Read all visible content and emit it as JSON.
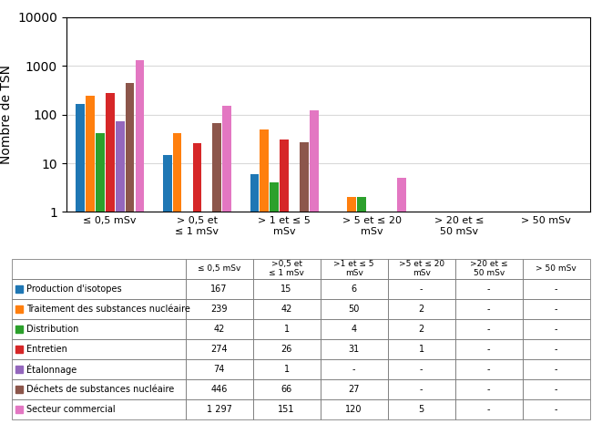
{
  "chart_data": {
    "type": "bar",
    "categories": [
      "≤ 0,5 mSv",
      "> 0,5 et\n≤ 1 mSv",
      "> 1 et ≤ 5\nmSv",
      "> 5 et ≤ 20\nmSv",
      "> 20 et ≤\n50 mSv",
      "> 50 mSv"
    ],
    "ylabel": "Nombre de TSN",
    "log": "y",
    "ylim": [
      1,
      10000
    ],
    "yticks": [
      1,
      10,
      100,
      1000,
      10000
    ],
    "grid": true,
    "series": [
      {
        "name": "Production d'isotopes",
        "values": [
          167,
          15,
          6,
          null,
          null,
          null
        ],
        "value_labels": [
          "167",
          "15",
          "6",
          "-",
          "-",
          "-"
        ]
      },
      {
        "name": "Traitement des substances nucléaire",
        "values": [
          239,
          42,
          50,
          2,
          null,
          null
        ],
        "value_labels": [
          "239",
          "42",
          "50",
          "2",
          "-",
          "-"
        ]
      },
      {
        "name": "Distribution",
        "values": [
          42,
          1,
          4,
          2,
          null,
          null
        ],
        "value_labels": [
          "42",
          "1",
          "4",
          "2",
          "-",
          "-"
        ]
      },
      {
        "name": "Entretien",
        "values": [
          274,
          26,
          31,
          1,
          null,
          null
        ],
        "value_labels": [
          "274",
          "26",
          "31",
          "1",
          "-",
          "-"
        ]
      },
      {
        "name": "Étalonnage",
        "values": [
          74,
          1,
          null,
          null,
          null,
          null
        ],
        "value_labels": [
          "74",
          "1",
          "-",
          "-",
          "-",
          "-"
        ]
      },
      {
        "name": "Déchets de substances nucléaire",
        "values": [
          446,
          66,
          27,
          null,
          null,
          null
        ],
        "value_labels": [
          "446",
          "66",
          "27",
          "-",
          "-",
          "-"
        ]
      },
      {
        "name": "Secteur commercial",
        "values": [
          1297,
          151,
          120,
          5,
          null,
          null
        ],
        "value_labels": [
          "1 297",
          "151",
          "120",
          "5",
          "-",
          "-"
        ]
      }
    ],
    "table_columns": [
      "≤ 0,5 mSv",
      ">0,5 et\n≤ 1 mSv",
      ">1 et ≤ 5\nmSv",
      ">5 et ≤ 20\nmSv",
      ">20 et ≤\n50 mSv",
      "> 50 mSv"
    ]
  }
}
